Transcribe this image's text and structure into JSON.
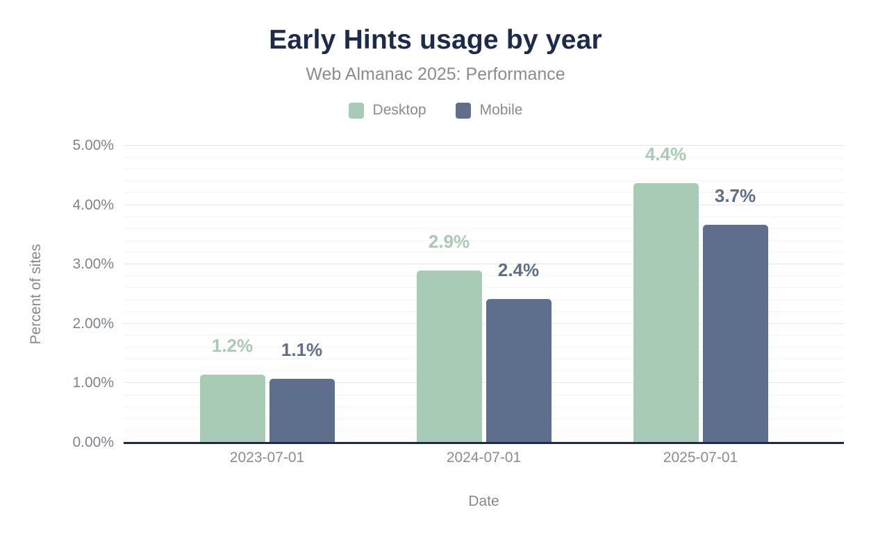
{
  "header": {
    "title": "Early Hints usage by year",
    "subtitle": "Web Almanac 2025: Performance"
  },
  "chart_data": {
    "type": "bar",
    "title": "Early Hints usage by year",
    "subtitle": "Web Almanac 2025: Performance",
    "xlabel": "Date",
    "ylabel": "Percent of sites",
    "categories": [
      "2023-07-01",
      "2024-07-01",
      "2025-07-01"
    ],
    "series": [
      {
        "name": "Desktop",
        "color": "#a8cbb6",
        "values": [
          1.15,
          2.9,
          4.37
        ],
        "labels": [
          "1.2%",
          "2.9%",
          "4.4%"
        ]
      },
      {
        "name": "Mobile",
        "color": "#5e6f8d",
        "values": [
          1.07,
          2.42,
          3.67
        ],
        "labels": [
          "1.1%",
          "2.4%",
          "3.7%"
        ]
      }
    ],
    "ylim": [
      0,
      5
    ],
    "y_ticks": [
      "0.00%",
      "1.00%",
      "2.00%",
      "3.00%",
      "4.00%",
      "5.00%"
    ],
    "minor_grid_step_pct": 0.2,
    "major_grid_step_pct": 1.0,
    "grid": true,
    "legend_position": "top"
  },
  "colors": {
    "title": "#1b2b4e",
    "subtitle_gray": "#8c8c8c",
    "axis_gray": "#7e838c",
    "axis_line": "#1b2b4e",
    "grid_minor": "#f3f3f3",
    "grid_major": "#e6e6e6",
    "background": "#ffffff"
  }
}
